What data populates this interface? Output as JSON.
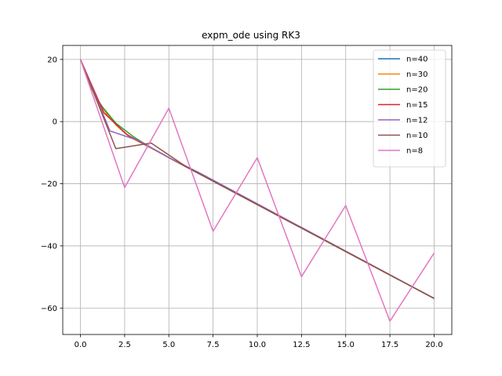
{
  "chart_data": {
    "type": "line",
    "title": "expm_ode using RK3",
    "xlabel": "",
    "ylabel": "",
    "xlim": [
      -1.0,
      21.0
    ],
    "ylim": [
      -68.5,
      24.5
    ],
    "xticks": [
      0.0,
      2.5,
      5.0,
      7.5,
      10.0,
      12.5,
      15.0,
      17.5,
      20.0
    ],
    "xtick_labels": [
      "0.0",
      "2.5",
      "5.0",
      "7.5",
      "10.0",
      "12.5",
      "15.0",
      "17.5",
      "20.0"
    ],
    "yticks": [
      20,
      0,
      -20,
      -40,
      -60
    ],
    "ytick_labels": [
      "20",
      "0",
      "−20",
      "−40",
      "−60"
    ],
    "grid": true,
    "legend_position": "top-right",
    "series": [
      {
        "name": "n=40",
        "color": "#1f77b4",
        "x": [
          0,
          0.5,
          1.0,
          1.5,
          2.0,
          2.5,
          3.0,
          4.0,
          5.0,
          20.0
        ],
        "y": [
          20,
          12.1,
          6.8,
          2.4,
          -1.0,
          -3.6,
          -5.6,
          -8.5,
          -11.6,
          -56.9
        ]
      },
      {
        "name": "n=30",
        "color": "#ff7f0e",
        "x": [
          0,
          0.5,
          1.0,
          1.5,
          2.0,
          2.5,
          3.0,
          4.0,
          5.0,
          20.0
        ],
        "y": [
          20,
          12.1,
          6.8,
          2.4,
          -1.0,
          -3.6,
          -5.6,
          -8.5,
          -11.6,
          -56.9
        ]
      },
      {
        "name": "n=20",
        "color": "#2ca02c",
        "x": [
          0,
          1.0,
          2.0,
          3.0,
          4.0,
          5.0,
          20.0
        ],
        "y": [
          20,
          6.4,
          -0.5,
          -4.9,
          -8.4,
          -11.6,
          -56.9
        ]
      },
      {
        "name": "n=15",
        "color": "#d62728",
        "x": [
          0,
          1.33,
          2.67,
          4.0,
          5.33,
          20.0
        ],
        "y": [
          20,
          2.8,
          -4.4,
          -8.4,
          -12.6,
          -56.9
        ]
      },
      {
        "name": "n=12",
        "color": "#9467bd",
        "x": [
          0,
          1.67,
          3.33,
          5.0,
          6.67,
          20.0
        ],
        "y": [
          20,
          -3.0,
          -6.2,
          -11.6,
          -16.3,
          -56.9
        ]
      },
      {
        "name": "n=10",
        "color": "#8c564b",
        "x": [
          0,
          2.0,
          4.0,
          6.0,
          20.0
        ],
        "y": [
          20,
          -8.7,
          -6.9,
          -14.6,
          -56.9
        ]
      },
      {
        "name": "n=8",
        "color": "#e377c2",
        "x": [
          0,
          2.5,
          5.0,
          7.5,
          10.0,
          12.5,
          15.0,
          17.5,
          20.0
        ],
        "y": [
          20,
          -21.2,
          4.3,
          -35.3,
          -11.6,
          -49.9,
          -27.0,
          -64.2,
          -42.3
        ]
      }
    ]
  }
}
